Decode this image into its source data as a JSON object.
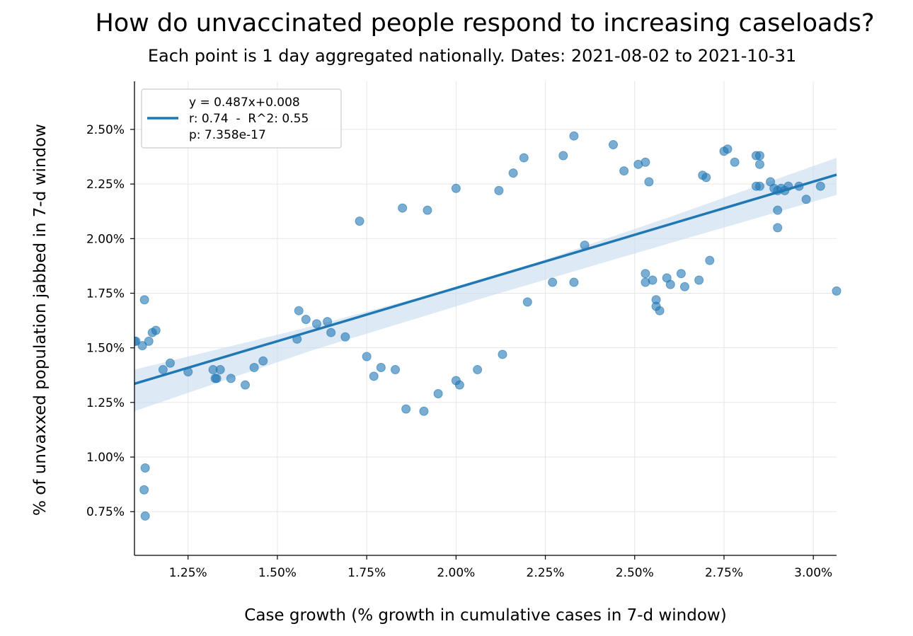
{
  "chart_data": {
    "type": "scatter",
    "title": "How do unvaccinated people respond to increasing caseloads?",
    "subtitle": "Each point is 1 day aggregated nationally. Dates: 2021-08-02 to 2021-10-31",
    "xlabel": "Case growth (% growth in cumulative cases in 7-d window)",
    "ylabel": "% of unvaxxed population jabbed in 7-d window",
    "xlim": [
      1.1,
      3.065
    ],
    "ylim": [
      0.55,
      2.72
    ],
    "x_ticks": [
      1.25,
      1.5,
      1.75,
      2.0,
      2.25,
      2.5,
      2.75,
      3.0
    ],
    "x_tick_labels": [
      "1.25%",
      "1.50%",
      "1.75%",
      "2.00%",
      "2.25%",
      "2.50%",
      "2.75%",
      "3.00%"
    ],
    "y_ticks": [
      0.75,
      1.0,
      1.25,
      1.5,
      1.75,
      2.0,
      2.25,
      2.5
    ],
    "y_tick_labels": [
      "0.75%",
      "1.00%",
      "1.25%",
      "1.50%",
      "1.75%",
      "2.00%",
      "2.25%",
      "2.50%"
    ],
    "grid": true,
    "legend_position": "top-left",
    "legend_lines": [
      "y = 0.487x+0.008",
      "r: 0.74  -  R^2: 0.55",
      "p: 7.358e-17"
    ],
    "colors": {
      "points": "#1f77b4",
      "line": "#1f77b4",
      "band": "#c6dbef"
    },
    "regression": {
      "slope": 0.487,
      "intercept": 0.008
    },
    "confidence_band": {
      "x": [
        1.1,
        1.6,
        2.1,
        2.6,
        3.065
      ],
      "lower": [
        1.21,
        1.49,
        1.74,
        1.98,
        2.2
      ],
      "upper": [
        1.4,
        1.6,
        1.82,
        2.1,
        2.37
      ]
    },
    "points": [
      [
        1.1,
        1.53
      ],
      [
        1.104,
        1.53
      ],
      [
        1.122,
        1.51
      ],
      [
        1.128,
        1.72
      ],
      [
        1.14,
        1.53
      ],
      [
        1.15,
        1.57
      ],
      [
        1.16,
        1.58
      ],
      [
        1.18,
        1.4
      ],
      [
        1.2,
        1.43
      ],
      [
        1.25,
        1.39
      ],
      [
        1.13,
        0.95
      ],
      [
        1.127,
        0.85
      ],
      [
        1.13,
        0.73
      ],
      [
        1.32,
        1.4
      ],
      [
        1.326,
        1.36
      ],
      [
        1.33,
        1.36
      ],
      [
        1.34,
        1.4
      ],
      [
        1.37,
        1.36
      ],
      [
        1.41,
        1.33
      ],
      [
        1.435,
        1.41
      ],
      [
        1.46,
        1.44
      ],
      [
        1.555,
        1.54
      ],
      [
        1.56,
        1.67
      ],
      [
        1.58,
        1.63
      ],
      [
        1.61,
        1.61
      ],
      [
        1.64,
        1.62
      ],
      [
        1.65,
        1.57
      ],
      [
        1.69,
        1.55
      ],
      [
        1.73,
        2.08
      ],
      [
        1.75,
        1.46
      ],
      [
        1.77,
        1.37
      ],
      [
        1.79,
        1.41
      ],
      [
        1.83,
        1.4
      ],
      [
        1.85,
        2.14
      ],
      [
        1.86,
        1.22
      ],
      [
        1.91,
        1.21
      ],
      [
        1.92,
        2.13
      ],
      [
        1.95,
        1.29
      ],
      [
        2.0,
        2.23
      ],
      [
        2.0,
        1.35
      ],
      [
        2.01,
        1.33
      ],
      [
        2.06,
        1.4
      ],
      [
        2.12,
        2.22
      ],
      [
        2.13,
        1.47
      ],
      [
        2.16,
        2.3
      ],
      [
        2.19,
        2.37
      ],
      [
        2.2,
        1.71
      ],
      [
        2.27,
        1.8
      ],
      [
        2.3,
        2.38
      ],
      [
        2.33,
        2.47
      ],
      [
        2.33,
        1.8
      ],
      [
        2.36,
        1.97
      ],
      [
        2.44,
        2.43
      ],
      [
        2.47,
        2.31
      ],
      [
        2.51,
        2.34
      ],
      [
        2.53,
        2.35
      ],
      [
        2.53,
        1.84
      ],
      [
        2.53,
        1.8
      ],
      [
        2.54,
        2.26
      ],
      [
        2.55,
        1.81
      ],
      [
        2.56,
        1.72
      ],
      [
        2.56,
        1.69
      ],
      [
        2.57,
        1.67
      ],
      [
        2.59,
        1.82
      ],
      [
        2.6,
        1.79
      ],
      [
        2.63,
        1.84
      ],
      [
        2.64,
        1.78
      ],
      [
        2.68,
        1.81
      ],
      [
        2.69,
        2.29
      ],
      [
        2.7,
        2.28
      ],
      [
        2.71,
        1.9
      ],
      [
        2.75,
        2.4
      ],
      [
        2.76,
        2.41
      ],
      [
        2.78,
        2.35
      ],
      [
        2.84,
        2.38
      ],
      [
        2.85,
        2.38
      ],
      [
        2.85,
        2.34
      ],
      [
        2.84,
        2.24
      ],
      [
        2.85,
        2.24
      ],
      [
        2.88,
        2.26
      ],
      [
        2.89,
        2.23
      ],
      [
        2.9,
        2.22
      ],
      [
        2.91,
        2.23
      ],
      [
        2.92,
        2.22
      ],
      [
        2.9,
        2.13
      ],
      [
        2.9,
        2.05
      ],
      [
        2.93,
        2.24
      ],
      [
        2.96,
        2.24
      ],
      [
        2.98,
        2.18
      ],
      [
        3.02,
        2.24
      ],
      [
        3.065,
        1.76
      ]
    ]
  }
}
